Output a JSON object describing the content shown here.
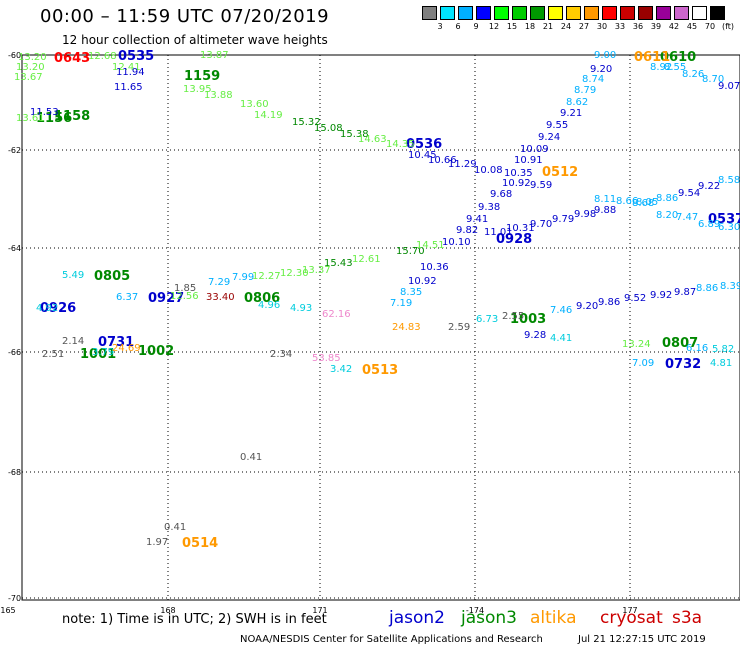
{
  "header": {
    "title": "00:00 – 11:59 UTC 07/20/2019",
    "subtitle": "12 hour collection of altimeter wave heights"
  },
  "colorbar": {
    "colors": [
      "#7f7f7f",
      "#00e5ff",
      "#00b0ff",
      "#0000ff",
      "#00ff00",
      "#00cc00",
      "#009900",
      "#ffff00",
      "#ffcc00",
      "#ff9900",
      "#ff0000",
      "#cc0000",
      "#990000",
      "#990099",
      "#cc66cc",
      "#ffffff",
      "#000000"
    ],
    "labels": [
      "3",
      "6",
      "9",
      "12",
      "15",
      "18",
      "21",
      "24",
      "27",
      "30",
      "33",
      "36",
      "39",
      "42",
      "45",
      "70",
      "(ft)"
    ]
  },
  "map": {
    "lon_labels": [
      "165",
      "168",
      "171",
      "-174",
      "177"
    ],
    "lat_labels": [
      "-60",
      "-62",
      "-64",
      "-66",
      "-68",
      "-70"
    ]
  },
  "footer": {
    "note": "note: 1) Time is in UTC; 2) SWH is in feet",
    "satellites": [
      {
        "name": "jason2",
        "color": "#0000cc"
      },
      {
        "name": "jason3",
        "color": "#008800"
      },
      {
        "name": "altika",
        "color": "#ff9900"
      },
      {
        "name": "cryosat",
        "color": "#cc0000"
      },
      {
        "name": "s3a",
        "color": "#cc0000"
      }
    ],
    "credit": "NOAA/NESDIS Center for Satellite Applications and Research",
    "date": "Jul 21 12:27:15 UTC 2019"
  },
  "observations": [
    {
      "t": "0643",
      "c": "#ff0000",
      "big": true
    },
    {
      "t": "0535",
      "c": "#0000cc",
      "big": true
    },
    {
      "t": "1159",
      "c": "#008800",
      "big": true
    },
    {
      "t": "1158",
      "c": "#008800",
      "big": true
    },
    {
      "t": "1156",
      "c": "#008800",
      "big": true
    },
    {
      "t": "0536",
      "c": "#0000cc",
      "big": true
    },
    {
      "t": "0512",
      "c": "#ff9900",
      "big": true
    },
    {
      "t": "0610",
      "c": "#008800",
      "big": true
    },
    {
      "t": "0611",
      "c": "#ff9900",
      "big": true
    },
    {
      "t": "0537",
      "c": "#0000cc",
      "big": true
    },
    {
      "t": "0928",
      "c": "#0000cc",
      "big": true
    },
    {
      "t": "0805",
      "c": "#008800",
      "big": true
    },
    {
      "t": "0926",
      "c": "#0000cc",
      "big": true
    },
    {
      "t": "0927",
      "c": "#0000cc",
      "big": true
    },
    {
      "t": "0806",
      "c": "#008800",
      "big": true
    },
    {
      "t": "1003",
      "c": "#008800",
      "big": true
    },
    {
      "t": "0731",
      "c": "#0000cc",
      "big": true
    },
    {
      "t": "1001",
      "c": "#008800",
      "big": true
    },
    {
      "t": "1002",
      "c": "#008800",
      "big": true
    },
    {
      "t": "0513",
      "c": "#ff9900",
      "big": true
    },
    {
      "t": "0807",
      "c": "#008800",
      "big": true
    },
    {
      "t": "0732",
      "c": "#0000cc",
      "big": true
    },
    {
      "t": "0514",
      "c": "#ff9900",
      "big": true
    },
    {
      "t": "13.20",
      "c": "#66ee44"
    },
    {
      "t": "13.20",
      "c": "#66ee44"
    },
    {
      "t": "13.67",
      "c": "#66ee44"
    },
    {
      "t": "12.68",
      "c": "#66ee44"
    },
    {
      "t": "12.41",
      "c": "#66ee44"
    },
    {
      "t": "11.94",
      "c": "#0000cc"
    },
    {
      "t": "11.65",
      "c": "#0000cc"
    },
    {
      "t": "13.87",
      "c": "#66ee44"
    },
    {
      "t": "13.95",
      "c": "#66ee44"
    },
    {
      "t": "13.88",
      "c": "#66ee44"
    },
    {
      "t": "13.60",
      "c": "#66ee44"
    },
    {
      "t": "14.19",
      "c": "#66ee44"
    },
    {
      "t": "15.32",
      "c": "#008800"
    },
    {
      "t": "15.08",
      "c": "#008800"
    },
    {
      "t": "15.38",
      "c": "#008800"
    },
    {
      "t": "14.63",
      "c": "#66ee44"
    },
    {
      "t": "14.35",
      "c": "#66ee44"
    },
    {
      "t": "11.53",
      "c": "#0000cc"
    },
    {
      "t": "13.61",
      "c": "#66ee44"
    },
    {
      "t": "10.45",
      "c": "#0000cc"
    },
    {
      "t": "10.66",
      "c": "#0000cc"
    },
    {
      "t": "11.29",
      "c": "#0000cc"
    },
    {
      "t": "10.08",
      "c": "#0000cc"
    },
    {
      "t": "10.35",
      "c": "#0000cc"
    },
    {
      "t": "10.91",
      "c": "#0000cc"
    },
    {
      "t": "10.09",
      "c": "#0000cc"
    },
    {
      "t": "9.24",
      "c": "#0000cc"
    },
    {
      "t": "9.55",
      "c": "#0000cc"
    },
    {
      "t": "9.21",
      "c": "#0000cc"
    },
    {
      "t": "8.62",
      "c": "#00b0ff"
    },
    {
      "t": "8.79",
      "c": "#00b0ff"
    },
    {
      "t": "8.74",
      "c": "#00b0ff"
    },
    {
      "t": "9.20",
      "c": "#0000cc"
    },
    {
      "t": "9.00",
      "c": "#00b0ff"
    },
    {
      "t": "8.92",
      "c": "#00b0ff"
    },
    {
      "t": "8.55",
      "c": "#00b0ff"
    },
    {
      "t": "8.26",
      "c": "#00b0ff"
    },
    {
      "t": "8.70",
      "c": "#00b0ff"
    },
    {
      "t": "9.07",
      "c": "#0000cc"
    },
    {
      "t": "8.58",
      "c": "#00b0ff"
    },
    {
      "t": "9.22",
      "c": "#0000cc"
    },
    {
      "t": "9.54",
      "c": "#0000cc"
    },
    {
      "t": "8.86",
      "c": "#00b0ff"
    },
    {
      "t": "8.68",
      "c": "#00b0ff"
    },
    {
      "t": "9.59",
      "c": "#0000cc"
    },
    {
      "t": "10.92",
      "c": "#0000cc"
    },
    {
      "t": "9.68",
      "c": "#0000cc"
    },
    {
      "t": "9.38",
      "c": "#0000cc"
    },
    {
      "t": "9.41",
      "c": "#0000cc"
    },
    {
      "t": "9.82",
      "c": "#0000cc"
    },
    {
      "t": "11.01",
      "c": "#0000cc"
    },
    {
      "t": "10.31",
      "c": "#0000cc"
    },
    {
      "t": "9.70",
      "c": "#0000cc"
    },
    {
      "t": "9.79",
      "c": "#0000cc"
    },
    {
      "t": "9.98",
      "c": "#0000cc"
    },
    {
      "t": "9.88",
      "c": "#0000cc"
    },
    {
      "t": "8.11",
      "c": "#00b0ff"
    },
    {
      "t": "8.66",
      "c": "#00b0ff"
    },
    {
      "t": "8.05",
      "c": "#00b0ff"
    },
    {
      "t": "8.20",
      "c": "#00b0ff"
    },
    {
      "t": "7.47",
      "c": "#00b0ff"
    },
    {
      "t": "6.89",
      "c": "#00b0ff"
    },
    {
      "t": "6.30",
      "c": "#00b0ff"
    },
    {
      "t": "10.10",
      "c": "#0000cc"
    },
    {
      "t": "15.70",
      "c": "#008800"
    },
    {
      "t": "14.51",
      "c": "#66ee44"
    },
    {
      "t": "15.43",
      "c": "#008800"
    },
    {
      "t": "12.61",
      "c": "#66ee44"
    },
    {
      "t": "13.37",
      "c": "#66ee44"
    },
    {
      "t": "12.30",
      "c": "#66ee44"
    },
    {
      "t": "12.27",
      "c": "#66ee44"
    },
    {
      "t": "7.99",
      "c": "#00b0ff"
    },
    {
      "t": "7.29",
      "c": "#00b0ff"
    },
    {
      "t": "10.36",
      "c": "#0000cc"
    },
    {
      "t": "10.92",
      "c": "#0000cc"
    },
    {
      "t": "8.35",
      "c": "#00b0ff"
    },
    {
      "t": "7.19",
      "c": "#00b0ff"
    },
    {
      "t": "5.49",
      "c": "#00ccdd"
    },
    {
      "t": "4.92",
      "c": "#00ccdd"
    },
    {
      "t": "6.37",
      "c": "#00b0ff"
    },
    {
      "t": "1.85",
      "c": "#555555"
    },
    {
      "t": "12.56",
      "c": "#66ee44"
    },
    {
      "t": "33.40",
      "c": "#990000"
    },
    {
      "t": "4.96",
      "c": "#00ccdd"
    },
    {
      "t": "4.93",
      "c": "#00ccdd"
    },
    {
      "t": "62.16",
      "c": "#ee88cc"
    },
    {
      "t": "24.83",
      "c": "#ff9900"
    },
    {
      "t": "2.59",
      "c": "#555555"
    },
    {
      "t": "6.73",
      "c": "#00ccdd"
    },
    {
      "t": "2.55",
      "c": "#555555"
    },
    {
      "t": "7.46",
      "c": "#00b0ff"
    },
    {
      "t": "9.20",
      "c": "#0000cc"
    },
    {
      "t": "9.86",
      "c": "#0000cc"
    },
    {
      "t": "9.52",
      "c": "#0000cc"
    },
    {
      "t": "9.92",
      "c": "#0000cc"
    },
    {
      "t": "9.87",
      "c": "#0000cc"
    },
    {
      "t": "8.86",
      "c": "#00b0ff"
    },
    {
      "t": "8.39",
      "c": "#00b0ff"
    },
    {
      "t": "9.28",
      "c": "#0000cc"
    },
    {
      "t": "4.41",
      "c": "#00ccdd"
    },
    {
      "t": "2.14",
      "c": "#555555"
    },
    {
      "t": "2.51",
      "c": "#555555"
    },
    {
      "t": "3.79",
      "c": "#00ccdd"
    },
    {
      "t": "24.69",
      "c": "#ff9900"
    },
    {
      "t": "2.34",
      "c": "#555555"
    },
    {
      "t": "53.85",
      "c": "#ee88cc"
    },
    {
      "t": "3.42",
      "c": "#00ccdd"
    },
    {
      "t": "13.24",
      "c": "#66ee44"
    },
    {
      "t": "7.09",
      "c": "#00b0ff"
    },
    {
      "t": "6.16",
      "c": "#00b0ff"
    },
    {
      "t": "5.82",
      "c": "#00ccdd"
    },
    {
      "t": "4.81",
      "c": "#00ccdd"
    },
    {
      "t": "0.41",
      "c": "#555555"
    },
    {
      "t": "0.41",
      "c": "#555555"
    },
    {
      "t": "1.97",
      "c": "#555555"
    }
  ]
}
